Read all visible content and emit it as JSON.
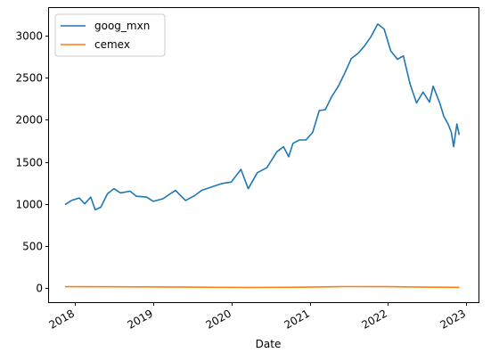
{
  "chart_data": {
    "type": "line",
    "title": "",
    "xlabel": "Date",
    "ylabel": "",
    "xlim": [
      "2017-09-01",
      "2023-03-01"
    ],
    "ylim": [
      -170,
      3330
    ],
    "yticks": [
      0,
      500,
      1000,
      1500,
      2000,
      2500,
      3000
    ],
    "xticks": [
      "2018",
      "2019",
      "2020",
      "2021",
      "2022",
      "2023"
    ],
    "grid": false,
    "legend": "top-left",
    "series": [
      {
        "name": "goog_mxn",
        "color": "#1f77b4",
        "points": [
          [
            "2017-11-15",
            990
          ],
          [
            "2017-12-15",
            1040
          ],
          [
            "2018-01-20",
            1070
          ],
          [
            "2018-02-15",
            1000
          ],
          [
            "2018-03-15",
            1080
          ],
          [
            "2018-04-05",
            930
          ],
          [
            "2018-05-01",
            960
          ],
          [
            "2018-06-01",
            1120
          ],
          [
            "2018-07-01",
            1180
          ],
          [
            "2018-08-01",
            1130
          ],
          [
            "2018-09-15",
            1150
          ],
          [
            "2018-10-15",
            1090
          ],
          [
            "2018-12-01",
            1080
          ],
          [
            "2019-01-01",
            1030
          ],
          [
            "2019-02-15",
            1060
          ],
          [
            "2019-04-15",
            1160
          ],
          [
            "2019-06-01",
            1040
          ],
          [
            "2019-07-15",
            1100
          ],
          [
            "2019-08-15",
            1160
          ],
          [
            "2019-10-01",
            1200
          ],
          [
            "2019-11-15",
            1240
          ],
          [
            "2020-01-01",
            1260
          ],
          [
            "2020-02-15",
            1410
          ],
          [
            "2020-03-20",
            1180
          ],
          [
            "2020-05-01",
            1370
          ],
          [
            "2020-06-15",
            1430
          ],
          [
            "2020-08-01",
            1620
          ],
          [
            "2020-09-01",
            1680
          ],
          [
            "2020-09-25",
            1560
          ],
          [
            "2020-10-15",
            1720
          ],
          [
            "2020-11-15",
            1760
          ],
          [
            "2020-12-15",
            1760
          ],
          [
            "2021-01-15",
            1850
          ],
          [
            "2021-02-15",
            2110
          ],
          [
            "2021-03-15",
            2120
          ],
          [
            "2021-04-15",
            2280
          ],
          [
            "2021-05-15",
            2400
          ],
          [
            "2021-06-15",
            2560
          ],
          [
            "2021-07-15",
            2730
          ],
          [
            "2021-08-15",
            2790
          ],
          [
            "2021-09-15",
            2880
          ],
          [
            "2021-10-15",
            2990
          ],
          [
            "2021-11-15",
            3140
          ],
          [
            "2021-12-15",
            3080
          ],
          [
            "2022-01-15",
            2820
          ],
          [
            "2022-02-15",
            2720
          ],
          [
            "2022-03-15",
            2760
          ],
          [
            "2022-04-15",
            2430
          ],
          [
            "2022-05-15",
            2200
          ],
          [
            "2022-06-15",
            2330
          ],
          [
            "2022-07-15",
            2210
          ],
          [
            "2022-08-01",
            2400
          ],
          [
            "2022-09-01",
            2200
          ],
          [
            "2022-09-20",
            2040
          ],
          [
            "2022-10-10",
            1950
          ],
          [
            "2022-10-25",
            1850
          ],
          [
            "2022-11-05",
            1680
          ],
          [
            "2022-11-20",
            1950
          ],
          [
            "2022-12-01",
            1820
          ]
        ]
      },
      {
        "name": "cemex",
        "color": "#ff7f0e",
        "points": [
          [
            "2017-11-15",
            15
          ],
          [
            "2018-06-01",
            14
          ],
          [
            "2019-06-01",
            9
          ],
          [
            "2020-03-20",
            5
          ],
          [
            "2020-12-01",
            8
          ],
          [
            "2021-06-01",
            16
          ],
          [
            "2022-01-01",
            15
          ],
          [
            "2022-06-01",
            9
          ],
          [
            "2022-12-01",
            7
          ]
        ]
      }
    ]
  }
}
